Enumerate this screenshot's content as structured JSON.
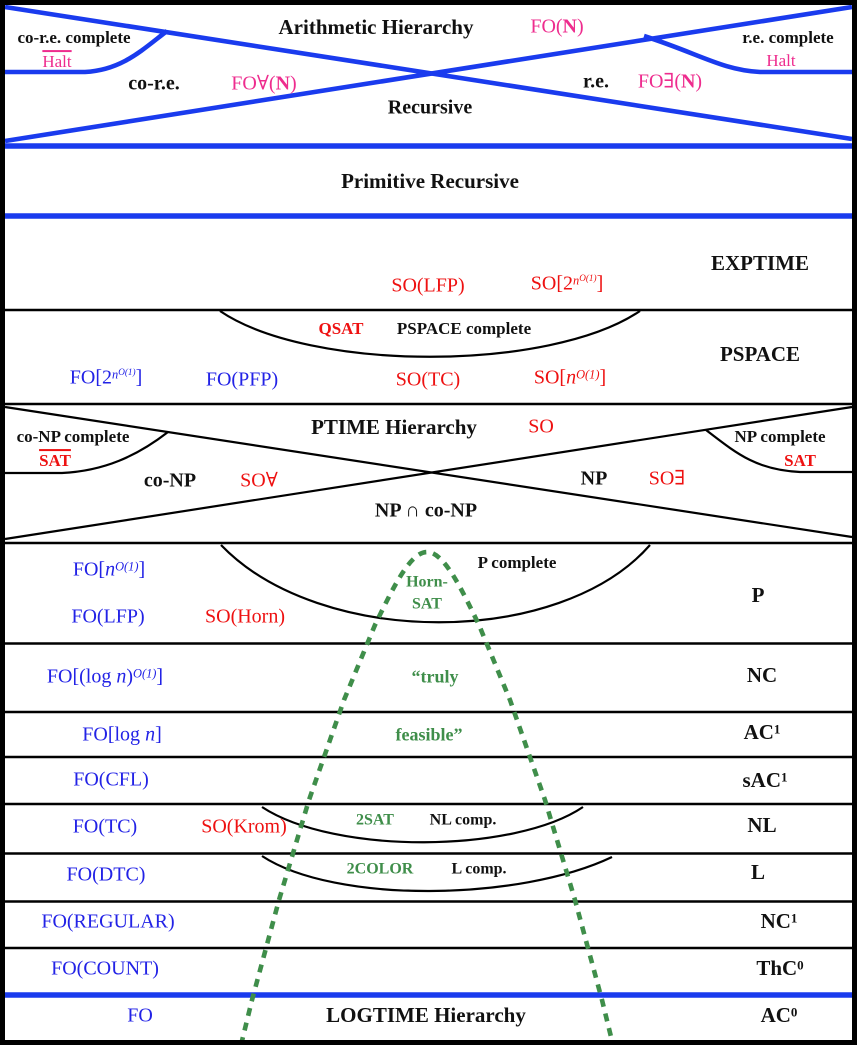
{
  "colors": {
    "line_blue": "#1a3bee",
    "text_blue": "#2222e6",
    "red": "#ee1111",
    "magenta": "#ee2c8e",
    "green": "#3f8e4a",
    "black": "#111111"
  },
  "arithmetic": {
    "title": "Arithmetic Hierarchy",
    "fo_n": [
      {
        "t": "FO("
      },
      {
        "t": "N",
        "s": "b"
      },
      {
        "t": ")"
      }
    ],
    "co_re_complete": "co-r.e. complete",
    "halt_left": "Halt",
    "co_re": "co-r.e.",
    "fo_forall_n": [
      {
        "t": "FO∀("
      },
      {
        "t": "N",
        "s": "b"
      },
      {
        "t": ")"
      }
    ],
    "re": "r.e.",
    "fo_exists_n": [
      {
        "t": "FO∃("
      },
      {
        "t": "N",
        "s": "b"
      },
      {
        "t": ")"
      }
    ],
    "re_complete": "r.e. complete",
    "halt_right": "Halt",
    "recursive": "Recursive"
  },
  "primitive_recursive": {
    "label": "Primitive Recursive"
  },
  "exptime": {
    "class_label": "EXPTIME",
    "so_lfp": "SO(LFP)",
    "so_2pow": [
      {
        "t": "SO[2"
      },
      {
        "t": "n",
        "s": "isup"
      },
      {
        "t": "O(1)",
        "s": "sup2"
      },
      {
        "t": "]"
      }
    ]
  },
  "pspace": {
    "qsat": "QSAT",
    "complete": "PSPACE complete",
    "class_label": "PSPACE",
    "fo_2pow": [
      {
        "t": "FO[2"
      },
      {
        "t": "n",
        "s": "isup"
      },
      {
        "t": "O(1)",
        "s": "sup2"
      },
      {
        "t": "]"
      }
    ],
    "fo_pfp": "FO(PFP)",
    "so_tc": "SO(TC)",
    "so_npow": [
      {
        "t": "SO["
      },
      {
        "t": "n",
        "s": "i"
      },
      {
        "t": "O(1)",
        "s": "isup"
      },
      {
        "t": "]"
      }
    ]
  },
  "ptime_hierarchy": {
    "title": "PTIME Hierarchy",
    "so": "SO",
    "co_np_complete": "co-NP complete",
    "sat_left": "SAT",
    "co_np": "co-NP",
    "so_forall": "SO∀",
    "np": "NP",
    "so_exists": "SO∃",
    "np_complete": "NP complete",
    "sat_right": "SAT",
    "np_cap_co_np": "NP ∩ co-NP"
  },
  "p": {
    "fo_npow": [
      {
        "t": "FO["
      },
      {
        "t": "n",
        "s": "i"
      },
      {
        "t": "O(1)",
        "s": "isup"
      },
      {
        "t": "]"
      }
    ],
    "p_complete": "P complete",
    "horn_line1": "Horn-",
    "horn_line2": "SAT",
    "class_label": "P",
    "fo_lfp": "FO(LFP)",
    "so_horn": "SO(Horn)"
  },
  "nc": {
    "fo_logpow": [
      {
        "t": "FO[(log "
      },
      {
        "t": "n",
        "s": "i"
      },
      {
        "t": ")"
      },
      {
        "t": "O(1)",
        "s": "isup"
      },
      {
        "t": "]"
      }
    ],
    "truly": "“truly",
    "class_label": "NC"
  },
  "ac1": {
    "fo_log": [
      {
        "t": "FO[log "
      },
      {
        "t": "n",
        "s": "i"
      },
      {
        "t": "]"
      }
    ],
    "feasible": "feasible”",
    "class_label": [
      {
        "t": "AC"
      },
      {
        "t": "1",
        "s": "sup"
      }
    ]
  },
  "sac1": {
    "fo_cfl": "FO(CFL)",
    "class_label": [
      {
        "t": "sAC"
      },
      {
        "t": "1",
        "s": "sup"
      }
    ]
  },
  "nl": {
    "fo_tc": "FO(TC)",
    "so_krom": "SO(Krom)",
    "two_sat": "2SAT",
    "nl_comp": "NL comp.",
    "class_label": "NL"
  },
  "l": {
    "fo_dtc": "FO(DTC)",
    "two_color": "2COLOR",
    "l_comp": "L comp.",
    "class_label": "L"
  },
  "nc1": {
    "fo_regular": "FO(REGULAR)",
    "class_label": [
      {
        "t": "NC"
      },
      {
        "t": "1",
        "s": "sup"
      }
    ]
  },
  "thc0": {
    "fo_count": "FO(COUNT)",
    "class_label": [
      {
        "t": "ThC"
      },
      {
        "t": "0",
        "s": "sup"
      }
    ]
  },
  "ac0": {
    "fo": "FO",
    "title": "LOGTIME Hierarchy",
    "class_label": [
      {
        "t": "AC"
      },
      {
        "t": "0",
        "s": "sup"
      }
    ]
  }
}
